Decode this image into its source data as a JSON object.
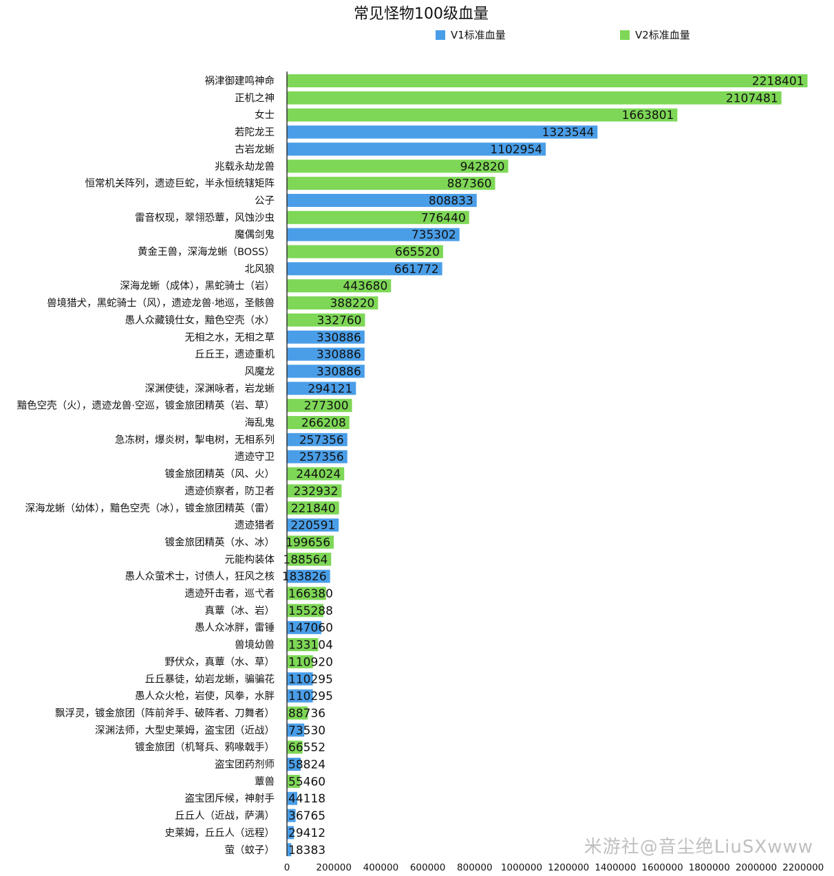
{
  "chart_data": {
    "type": "bar",
    "orientation": "horizontal",
    "title": "常见怪物100级血量",
    "legend_position": "top",
    "series_legend": [
      {
        "name": "V1标准血量",
        "color": "#4a9ee8"
      },
      {
        "name": "V2标准血量",
        "color": "#7ed756"
      }
    ],
    "xlim": [
      0,
      2300000
    ],
    "x_ticks": [
      0,
      200000,
      400000,
      600000,
      800000,
      1000000,
      1200000,
      1400000,
      1600000,
      1800000,
      2000000,
      2200000
    ],
    "x_tick_labels": [
      "0",
      "200000",
      "400000",
      "600000",
      "800000",
      "1000000",
      "1200000",
      "1400000",
      "1600000",
      "1800000",
      "2000000",
      "2200000"
    ],
    "bars": [
      {
        "label": "祸津御建鸣神命",
        "value": 2218401,
        "series": "V2标准血量"
      },
      {
        "label": "正机之神",
        "value": 2107481,
        "series": "V2标准血量"
      },
      {
        "label": "女士",
        "value": 1663801,
        "series": "V2标准血量"
      },
      {
        "label": "若陀龙王",
        "value": 1323544,
        "series": "V1标准血量"
      },
      {
        "label": "古岩龙蜥",
        "value": 1102954,
        "series": "V1标准血量"
      },
      {
        "label": "兆载永劫龙兽",
        "value": 942820,
        "series": "V2标准血量"
      },
      {
        "label": "恒常机关阵列，遗迹巨蛇，半永恒统辖矩阵",
        "value": 887360,
        "series": "V2标准血量"
      },
      {
        "label": "公子",
        "value": 808833,
        "series": "V1标准血量"
      },
      {
        "label": "雷音权现，翠翎恐蕈，风蚀沙虫",
        "value": 776440,
        "series": "V2标准血量"
      },
      {
        "label": "魔偶剑鬼",
        "value": 735302,
        "series": "V1标准血量"
      },
      {
        "label": "黄金王兽，深海龙蜥（BOSS）",
        "value": 665520,
        "series": "V2标准血量"
      },
      {
        "label": "北风狼",
        "value": 661772,
        "series": "V1标准血量"
      },
      {
        "label": "深海龙蜥（成体），黑蛇骑士（岩）",
        "value": 443680,
        "series": "V2标准血量"
      },
      {
        "label": "兽境猎犬，黑蛇骑士（风），遗迹龙兽·地巡，圣骸兽",
        "value": 388220,
        "series": "V2标准血量"
      },
      {
        "label": "愚人众藏镜仕女，黯色空壳（水）",
        "value": 332760,
        "series": "V2标准血量"
      },
      {
        "label": "无相之水，无相之草",
        "value": 330886,
        "series": "V1标准血量"
      },
      {
        "label": "丘丘王，遗迹重机",
        "value": 330886,
        "series": "V1标准血量"
      },
      {
        "label": "风魔龙",
        "value": 330886,
        "series": "V1标准血量"
      },
      {
        "label": "深渊使徒，深渊咏者，岩龙蜥",
        "value": 294121,
        "series": "V1标准血量"
      },
      {
        "label": "黯色空壳（火），遗迹龙兽·空巡，镀金旅团精英（岩、草）",
        "value": 277300,
        "series": "V2标准血量"
      },
      {
        "label": "海乱鬼",
        "value": 266208,
        "series": "V2标准血量"
      },
      {
        "label": "急冻树，爆炎树，掣电树，无相系列",
        "value": 257356,
        "series": "V1标准血量"
      },
      {
        "label": "遗迹守卫",
        "value": 257356,
        "series": "V1标准血量"
      },
      {
        "label": "镀金旅团精英（风、火）",
        "value": 244024,
        "series": "V2标准血量"
      },
      {
        "label": "遗迹侦察者，防卫者",
        "value": 232932,
        "series": "V2标准血量"
      },
      {
        "label": "深海龙蜥（幼体），黯色空壳（冰），镀金旅团精英（雷）",
        "value": 221840,
        "series": "V2标准血量"
      },
      {
        "label": "遗迹猎者",
        "value": 220591,
        "series": "V1标准血量"
      },
      {
        "label": "镀金旅团精英（水、冰）",
        "value": 199656,
        "series": "V2标准血量"
      },
      {
        "label": "元能构装体",
        "value": 188564,
        "series": "V2标准血量"
      },
      {
        "label": "愚人众萤术士，讨债人，狂风之核",
        "value": 183826,
        "series": "V1标准血量"
      },
      {
        "label": "遗迹歼击者，巡弋者",
        "value": 166380,
        "series": "V2标准血量"
      },
      {
        "label": "真蕈（冰、岩）",
        "value": 155288,
        "series": "V2标准血量"
      },
      {
        "label": "愚人众冰胖，雷锤",
        "value": 147060,
        "series": "V1标准血量"
      },
      {
        "label": "兽境幼兽",
        "value": 133104,
        "series": "V2标准血量"
      },
      {
        "label": "野伏众，真蕈（水、草）",
        "value": 110920,
        "series": "V2标准血量"
      },
      {
        "label": "丘丘暴徒，幼岩龙蜥，骗骗花",
        "value": 110295,
        "series": "V1标准血量"
      },
      {
        "label": "愚人众火枪，岩使，风拳，水胖",
        "value": 110295,
        "series": "V1标准血量"
      },
      {
        "label": "飘浮灵，镀金旅团（阵前斧手、破阵者、刀舞者）",
        "value": 88736,
        "series": "V2标准血量"
      },
      {
        "label": "深渊法师，大型史莱姆，盗宝团（近战）",
        "value": 73530,
        "series": "V1标准血量"
      },
      {
        "label": "镀金旅团（机弩兵、鸦喙戟手）",
        "value": 66552,
        "series": "V2标准血量"
      },
      {
        "label": "盗宝团药剂师",
        "value": 58824,
        "series": "V1标准血量"
      },
      {
        "label": "蕈兽",
        "value": 55460,
        "series": "V2标准血量"
      },
      {
        "label": "盗宝团斥候，神射手",
        "value": 44118,
        "series": "V1标准血量"
      },
      {
        "label": "丘丘人（近战，萨满）",
        "value": 36765,
        "series": "V1标准血量"
      },
      {
        "label": "史莱姆，丘丘人（远程）",
        "value": 29412,
        "series": "V1标准血量"
      },
      {
        "label": "萤（蚊子）",
        "value": 18383,
        "series": "V1标准血量"
      }
    ]
  },
  "watermark": "米游社@音尘绝LiuSXwww"
}
